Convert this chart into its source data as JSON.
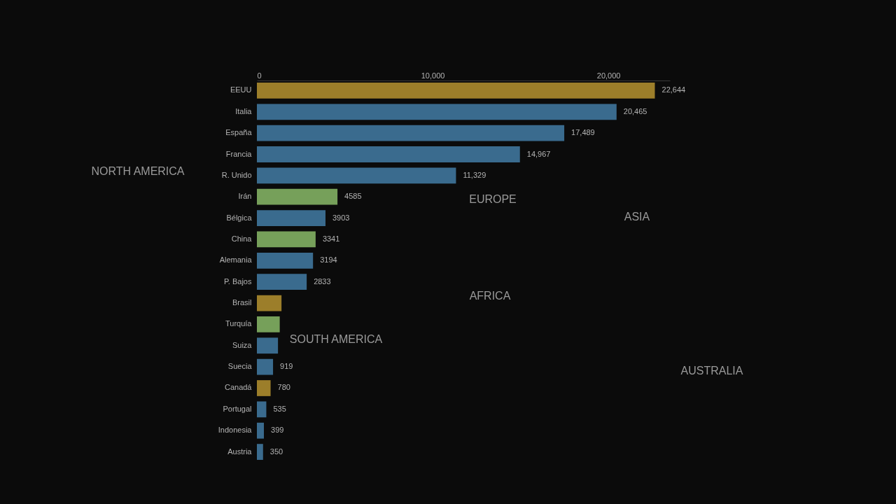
{
  "chart_data": {
    "type": "bar",
    "orientation": "horizontal",
    "categories": [
      "EEUU",
      "Italia",
      "España",
      "Francia",
      "R. Unido",
      "Irán",
      "Bélgica",
      "China",
      "Alemania",
      "P. Bajos",
      "Brasil",
      "Turquía",
      "Suiza",
      "Suecia",
      "Canadá",
      "Portugal",
      "Indonesia",
      "Austria"
    ],
    "values": [
      22644,
      20465,
      17489,
      14967,
      11329,
      4585,
      3903,
      3341,
      3194,
      2833,
      1400,
      1300,
      1200,
      919,
      780,
      535,
      399,
      350
    ],
    "value_labels": [
      "22,644",
      "20,465",
      "17,489",
      "14,967",
      "11,329",
      "4585",
      "3903",
      "3341",
      "3194",
      "2833",
      null,
      null,
      null,
      "919",
      "780",
      "535",
      "399",
      "350"
    ],
    "colors": [
      "#9c7e2a",
      "#3a6b8e",
      "#3a6b8e",
      "#3a6b8e",
      "#3a6b8e",
      "#76a05a",
      "#3a6b8e",
      "#76a05a",
      "#3a6b8e",
      "#3a6b8e",
      "#9c7e2a",
      "#76a05a",
      "#3a6b8e",
      "#3a6b8e",
      "#9c7e2a",
      "#3a6b8e",
      "#3a6b8e",
      "#3a6b8e"
    ],
    "xlim": [
      0,
      23500
    ],
    "xticks": [
      0,
      {
        "value": 10000,
        "label": "10,000"
      },
      {
        "value": 20000,
        "label": "20,000"
      }
    ],
    "grid": false,
    "annotations": [
      "NORTH AMERICA",
      "SOUTH AMERICA",
      "EUROPE",
      "AFRICA",
      "ASIA",
      "AUSTRALIA"
    ]
  }
}
